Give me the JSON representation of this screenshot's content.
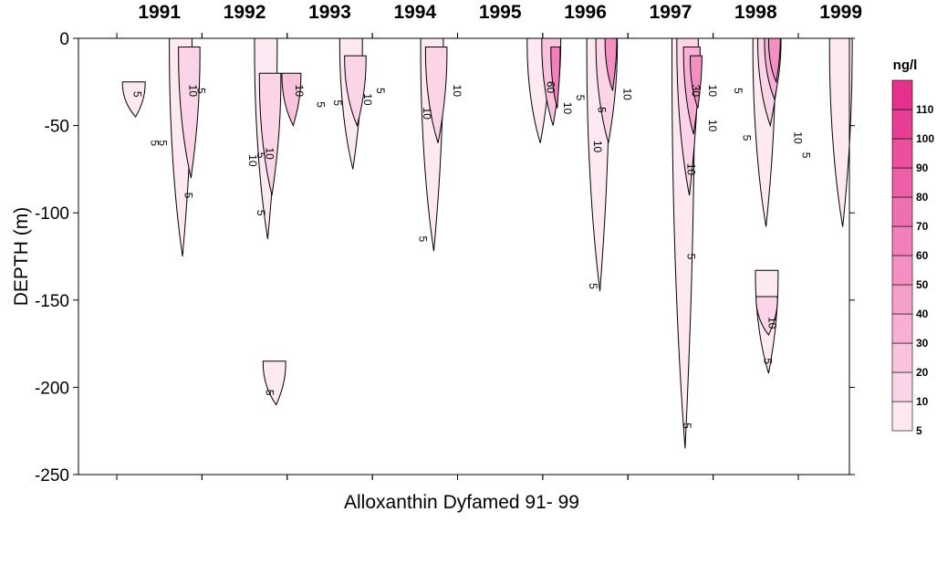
{
  "chart_data": {
    "type": "heatmap",
    "subtype": "contour",
    "title": "Alloxanthin Dyfamed 91- 99",
    "ylabel": "DEPTH (m)",
    "xlabel": "",
    "xlim": [
      1990.55,
      1999.6
    ],
    "ylim": [
      -250,
      0
    ],
    "years": [
      "1991",
      "1992",
      "1993",
      "1994",
      "1995",
      "1996",
      "1997",
      "1998",
      "1999"
    ],
    "y_ticks": [
      0,
      -50,
      -100,
      -150,
      -200,
      -250
    ],
    "y_tick_labels": [
      "0",
      "-50",
      "-100",
      "-150",
      "-200",
      "-250"
    ],
    "unit": "ng/l",
    "legend_levels": [
      "5",
      "10",
      "20",
      "30",
      "40",
      "50",
      "60",
      "70",
      "80",
      "90",
      "100",
      "110"
    ],
    "legend_position": "right",
    "colors": {
      "contour_line": "#000000",
      "level_colors": [
        "#fde9f2",
        "#fbd4e7",
        "#f9c2dd",
        "#f7b0d3",
        "#f5a0ca",
        "#f390c1",
        "#f17fb8",
        "#ef6faf",
        "#ed5fa6",
        "#eb4f9d",
        "#e83f94",
        "#e6318c"
      ]
    },
    "patches": [
      {
        "year": 1991.2,
        "depth_range": [
          -45,
          -25
        ],
        "level": 5
      },
      {
        "year": 1991.75,
        "depth_range": [
          -125,
          0
        ],
        "level": 5
      },
      {
        "year": 1991.85,
        "depth_range": [
          -80,
          -5
        ],
        "level": 10
      },
      {
        "year": 1992.75,
        "depth_range": [
          -115,
          0
        ],
        "level": 5
      },
      {
        "year": 1992.8,
        "depth_range": [
          -90,
          -20
        ],
        "level": 10
      },
      {
        "year": 1992.85,
        "depth_range": [
          -210,
          -185
        ],
        "level": 5
      },
      {
        "year": 1993.05,
        "depth_range": [
          -50,
          -20
        ],
        "level": 20
      },
      {
        "year": 1993.75,
        "depth_range": [
          -75,
          0
        ],
        "level": 5
      },
      {
        "year": 1993.8,
        "depth_range": [
          -50,
          -10
        ],
        "level": 10
      },
      {
        "year": 1994.7,
        "depth_range": [
          -122,
          0
        ],
        "level": 5
      },
      {
        "year": 1994.75,
        "depth_range": [
          -60,
          -5
        ],
        "level": 10
      },
      {
        "year": 1995.95,
        "depth_range": [
          -60,
          0
        ],
        "level": 5
      },
      {
        "year": 1996.1,
        "depth_range": [
          -50,
          0
        ],
        "level": 20
      },
      {
        "year": 1996.15,
        "depth_range": [
          -40,
          -5
        ],
        "level": 60
      },
      {
        "year": 1996.65,
        "depth_range": [
          -145,
          0
        ],
        "level": 5
      },
      {
        "year": 1996.75,
        "depth_range": [
          -60,
          0
        ],
        "level": 10
      },
      {
        "year": 1996.8,
        "depth_range": [
          -30,
          0
        ],
        "level": 50
      },
      {
        "year": 1997.65,
        "depth_range": [
          -235,
          0
        ],
        "level": 5
      },
      {
        "year": 1997.7,
        "depth_range": [
          -90,
          0
        ],
        "level": 10
      },
      {
        "year": 1997.75,
        "depth_range": [
          -55,
          -5
        ],
        "level": 30
      },
      {
        "year": 1997.8,
        "depth_range": [
          -40,
          -10
        ],
        "level": 50
      },
      {
        "year": 1998.6,
        "depth_range": [
          -108,
          0
        ],
        "level": 5
      },
      {
        "year": 1998.65,
        "depth_range": [
          -50,
          0
        ],
        "level": 10
      },
      {
        "year": 1998.7,
        "depth_range": [
          -35,
          0
        ],
        "level": 30
      },
      {
        "year": 1998.72,
        "depth_range": [
          -25,
          0
        ],
        "level": 50
      },
      {
        "year": 1998.63,
        "depth_range": [
          -192,
          -133
        ],
        "level": 5
      },
      {
        "year": 1998.63,
        "depth_range": [
          -170,
          -148
        ],
        "level": 10
      },
      {
        "year": 1999.5,
        "depth_range": [
          -108,
          0
        ],
        "level": 5
      }
    ],
    "contour_labels": [
      {
        "text": "5",
        "year": 1991.2,
        "depth": -32
      },
      {
        "text": "5",
        "year": 1991.4,
        "depth": -60
      },
      {
        "text": "5",
        "year": 1991.5,
        "depth": -60
      },
      {
        "text": "10",
        "year": 1991.85,
        "depth": -30
      },
      {
        "text": "5",
        "year": 1991.95,
        "depth": -30
      },
      {
        "text": "5",
        "year": 1991.8,
        "depth": -90
      },
      {
        "text": "10",
        "year": 1992.55,
        "depth": -70
      },
      {
        "text": "5",
        "year": 1992.65,
        "depth": -67
      },
      {
        "text": "10",
        "year": 1992.75,
        "depth": -66
      },
      {
        "text": "5",
        "year": 1992.65,
        "depth": -100
      },
      {
        "text": "10",
        "year": 1993.1,
        "depth": -30
      },
      {
        "text": "5",
        "year": 1993.35,
        "depth": -38
      },
      {
        "text": "5",
        "year": 1993.55,
        "depth": -37
      },
      {
        "text": "10",
        "year": 1993.9,
        "depth": -35
      },
      {
        "text": "5",
        "year": 1994.05,
        "depth": -30
      },
      {
        "text": "10",
        "year": 1994.6,
        "depth": -43
      },
      {
        "text": "10",
        "year": 1994.95,
        "depth": -30
      },
      {
        "text": "5",
        "year": 1994.55,
        "depth": -115
      },
      {
        "text": "60",
        "year": 1996.05,
        "depth": -28
      },
      {
        "text": "10",
        "year": 1996.25,
        "depth": -40
      },
      {
        "text": "5",
        "year": 1996.4,
        "depth": -34
      },
      {
        "text": "5",
        "year": 1996.65,
        "depth": -41
      },
      {
        "text": "10",
        "year": 1996.95,
        "depth": -32
      },
      {
        "text": "10",
        "year": 1996.6,
        "depth": -62
      },
      {
        "text": "5",
        "year": 1996.55,
        "depth": -142
      },
      {
        "text": "30",
        "year": 1997.75,
        "depth": -30
      },
      {
        "text": "10",
        "year": 1997.95,
        "depth": -30
      },
      {
        "text": "5",
        "year": 1998.25,
        "depth": -30
      },
      {
        "text": "10",
        "year": 1997.95,
        "depth": -50
      },
      {
        "text": "5",
        "year": 1998.35,
        "depth": -57
      },
      {
        "text": "10",
        "year": 1998.95,
        "depth": -57
      },
      {
        "text": "5",
        "year": 1999.05,
        "depth": -67
      },
      {
        "text": "10",
        "year": 1997.7,
        "depth": -75
      },
      {
        "text": "5",
        "year": 1997.7,
        "depth": -125
      },
      {
        "text": "10",
        "year": 1998.65,
        "depth": -163
      },
      {
        "text": "5",
        "year": 1998.6,
        "depth": -185
      },
      {
        "text": "5",
        "year": 1992.75,
        "depth": -203
      },
      {
        "text": "5",
        "year": 1997.65,
        "depth": -222
      }
    ]
  }
}
